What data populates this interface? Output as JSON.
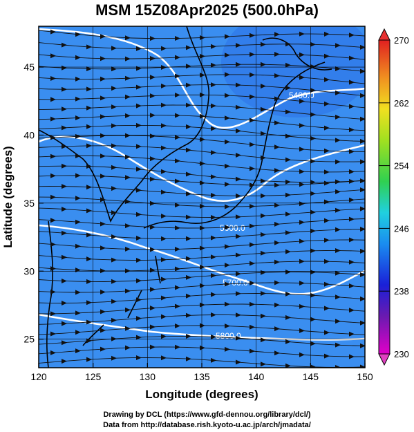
{
  "title": "MSM 15Z08Apr2025 (500.0hPa)",
  "x_axis": {
    "label": "Longitude (degrees)",
    "ticks": [
      "120",
      "125",
      "130",
      "135",
      "140",
      "145",
      "150"
    ]
  },
  "y_axis": {
    "label": "Latitude  (degrees)",
    "ticks": [
      "25",
      "30",
      "35",
      "40",
      "45"
    ]
  },
  "colorbar": {
    "ticks": [
      "270",
      "262",
      "254",
      "246",
      "238",
      "230"
    ],
    "min": 230,
    "max": 270
  },
  "contour_labels": [
    "5400.0",
    "5600.0",
    "5700.0",
    "5800.0"
  ],
  "credits": {
    "line1": "Drawing by DCL (https://www.gfd-dennou.org/library/dcl/)",
    "line2": "Data from http://database.rish.kyoto-u.ac.jp/arch/jmadata/"
  },
  "colors": {
    "cold": "#3a9cf0",
    "mid": "#3fd46a",
    "warm": "#f07a1a"
  }
}
